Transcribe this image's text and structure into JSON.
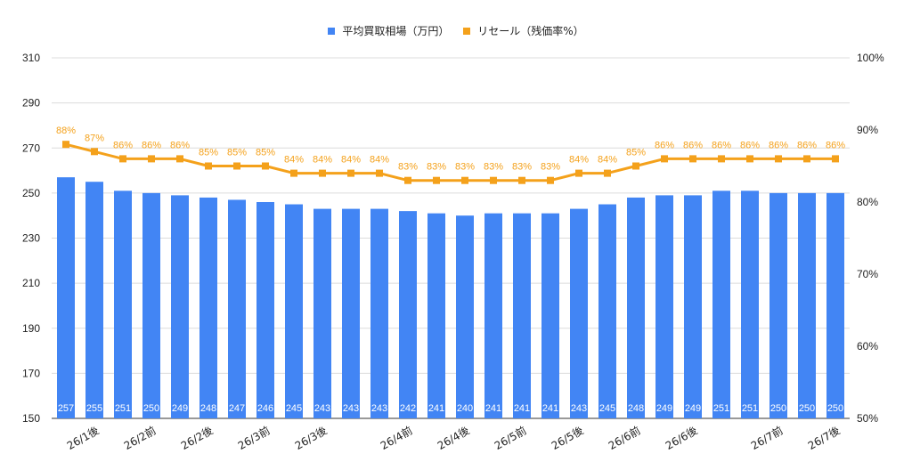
{
  "chart_data": {
    "type": "bar",
    "series": [
      {
        "name": "平均買取相場（万円）",
        "type": "bar",
        "axis": "left",
        "color": "#4285f4",
        "values": [
          257,
          255,
          251,
          250,
          249,
          248,
          247,
          246,
          245,
          243,
          243,
          243,
          242,
          241,
          240,
          241,
          241,
          241,
          243,
          245,
          248,
          249,
          249,
          251,
          251,
          250,
          250,
          250
        ]
      },
      {
        "name": "リセール（残価率%）",
        "type": "line",
        "axis": "right",
        "color": "#f4a11b",
        "values": [
          88,
          87,
          86,
          86,
          86,
          85,
          85,
          85,
          84,
          84,
          84,
          84,
          83,
          83,
          83,
          83,
          83,
          83,
          84,
          84,
          85,
          86,
          86,
          86,
          86,
          86,
          86,
          86
        ],
        "labels": [
          "88%",
          "87%",
          "86%",
          "86%",
          "86%",
          "85%",
          "85%",
          "85%",
          "84%",
          "84%",
          "84%",
          "84%",
          "83%",
          "83%",
          "83%",
          "83%",
          "83%",
          "83%",
          "84%",
          "84%",
          "85%",
          "86%",
          "86%",
          "86%",
          "86%",
          "86%",
          "86%",
          "86%"
        ]
      }
    ],
    "x_tick_labels": [
      {
        "index": 1,
        "text": "26/1後"
      },
      {
        "index": 3,
        "text": "26/2前"
      },
      {
        "index": 5,
        "text": "26/2後"
      },
      {
        "index": 7,
        "text": "26/3前"
      },
      {
        "index": 9,
        "text": "26/3後"
      },
      {
        "index": 12,
        "text": "26/4前"
      },
      {
        "index": 14,
        "text": "26/4後"
      },
      {
        "index": 16,
        "text": "26/5前"
      },
      {
        "index": 18,
        "text": "26/5後"
      },
      {
        "index": 20,
        "text": "26/6前"
      },
      {
        "index": 22,
        "text": "26/6後"
      },
      {
        "index": 25,
        "text": "26/7前"
      },
      {
        "index": 27,
        "text": "26/7後"
      }
    ],
    "y_left": {
      "min": 150,
      "max": 310,
      "ticks": [
        "150",
        "170",
        "190",
        "210",
        "230",
        "250",
        "270",
        "290",
        "310"
      ]
    },
    "y_right": {
      "min": 50,
      "max": 100,
      "ticks": [
        "50%",
        "60%",
        "70%",
        "80%",
        "90%",
        "100%"
      ]
    },
    "grid": true,
    "legend_position": "top"
  }
}
